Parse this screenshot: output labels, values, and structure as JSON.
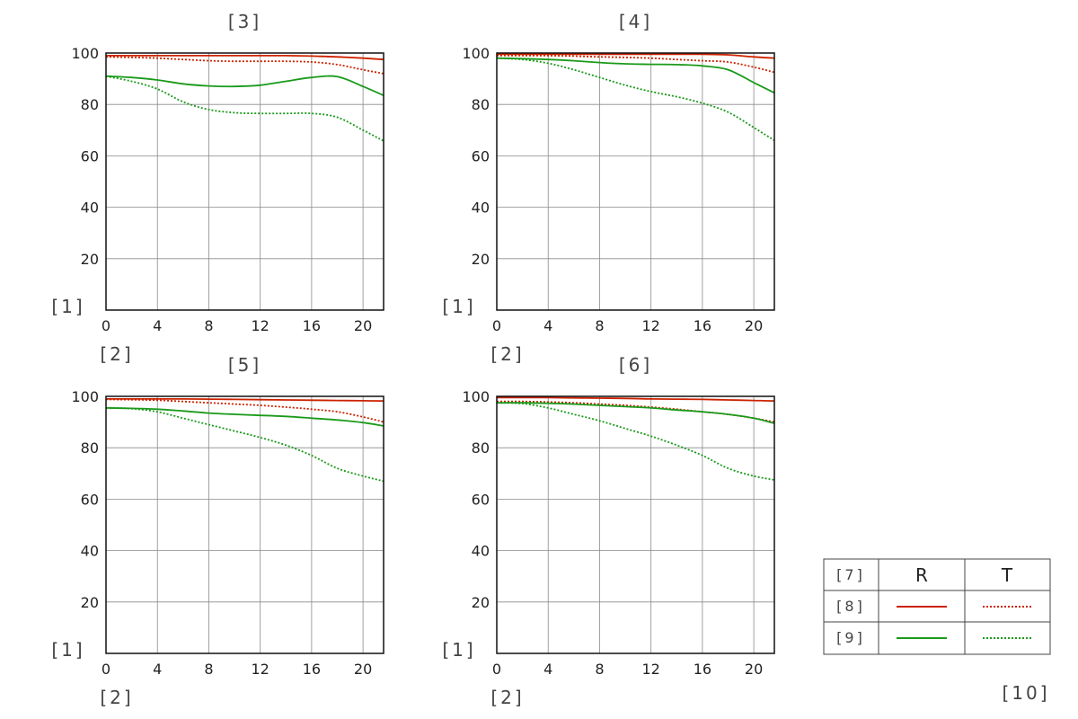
{
  "page": {
    "bottom_label": "[10]"
  },
  "legend": {
    "header_label": "[7]",
    "col_r": "R",
    "col_t": "T",
    "rows": [
      {
        "label": "[8]",
        "color": "#cc2200"
      },
      {
        "label": "[9]",
        "color": "#1a9a1a"
      }
    ]
  },
  "chart_data": [
    {
      "type": "line",
      "title": "[3]",
      "ylabel": "[1]",
      "xlabel": "[2]",
      "xlim": [
        0,
        21.6
      ],
      "ylim": [
        0,
        100
      ],
      "xticks": [
        0,
        4,
        8,
        12,
        16,
        20
      ],
      "yticks": [
        20,
        40,
        60,
        80,
        100
      ],
      "grid": true,
      "series": [
        {
          "color": "#cc2200",
          "style": "solid",
          "x": [
            0,
            2,
            4,
            6,
            8,
            10,
            12,
            14,
            16,
            18,
            20,
            21.6
          ],
          "y": [
            99,
            99,
            99,
            99,
            99,
            99,
            99,
            99,
            98.8,
            98.5,
            98,
            97.5
          ]
        },
        {
          "color": "#cc2200",
          "style": "dotted",
          "x": [
            0,
            2,
            4,
            6,
            8,
            10,
            12,
            14,
            16,
            18,
            20,
            21.6
          ],
          "y": [
            98.5,
            98.3,
            98,
            97.5,
            97,
            96.8,
            96.8,
            96.8,
            96.5,
            95.5,
            93.5,
            92
          ]
        },
        {
          "color": "#1a9a1a",
          "style": "solid",
          "x": [
            0,
            2,
            4,
            6,
            8,
            10,
            12,
            14,
            16,
            18,
            20,
            21.6
          ],
          "y": [
            91,
            90.5,
            89.5,
            88,
            87.2,
            87,
            87.5,
            89,
            90.5,
            90.8,
            87,
            83.5
          ]
        },
        {
          "color": "#1a9a1a",
          "style": "dotted",
          "x": [
            0,
            2,
            4,
            6,
            8,
            10,
            12,
            14,
            16,
            18,
            20,
            21.6
          ],
          "y": [
            91,
            89,
            86,
            81,
            78,
            76.8,
            76.5,
            76.5,
            76.5,
            75,
            70,
            65.8
          ]
        }
      ]
    },
    {
      "type": "line",
      "title": "[4]",
      "ylabel": "[1]",
      "xlabel": "[2]",
      "xlim": [
        0,
        21.6
      ],
      "ylim": [
        0,
        100
      ],
      "xticks": [
        0,
        4,
        8,
        12,
        16,
        20
      ],
      "yticks": [
        20,
        40,
        60,
        80,
        100
      ],
      "grid": true,
      "series": [
        {
          "color": "#cc2200",
          "style": "solid",
          "x": [
            0,
            2,
            4,
            6,
            8,
            10,
            12,
            14,
            16,
            18,
            20,
            21.6
          ],
          "y": [
            99.5,
            99.5,
            99.5,
            99.5,
            99.5,
            99.5,
            99.5,
            99.5,
            99.5,
            99.3,
            98.5,
            98
          ]
        },
        {
          "color": "#cc2200",
          "style": "dotted",
          "x": [
            0,
            2,
            4,
            6,
            8,
            10,
            12,
            14,
            16,
            18,
            20,
            21.6
          ],
          "y": [
            99,
            99,
            99,
            98.8,
            98.5,
            98.3,
            98,
            97.5,
            97,
            96.5,
            94.5,
            92.5
          ]
        },
        {
          "color": "#1a9a1a",
          "style": "solid",
          "x": [
            0,
            2,
            4,
            6,
            8,
            10,
            12,
            14,
            16,
            18,
            20,
            21.6
          ],
          "y": [
            98,
            97.8,
            97.5,
            97,
            96.3,
            95.8,
            95.6,
            95.5,
            95,
            93.5,
            88.5,
            84.5
          ]
        },
        {
          "color": "#1a9a1a",
          "style": "dotted",
          "x": [
            0,
            2,
            4,
            6,
            8,
            10,
            12,
            14,
            16,
            18,
            20,
            21.6
          ],
          "y": [
            98,
            97.5,
            96,
            93.5,
            90.5,
            87.5,
            85,
            83,
            80.5,
            77,
            71,
            66
          ]
        }
      ]
    },
    {
      "type": "line",
      "title": "[5]",
      "ylabel": "[1]",
      "xlabel": "[2]",
      "xlim": [
        0,
        21.6
      ],
      "ylim": [
        0,
        100
      ],
      "xticks": [
        0,
        4,
        8,
        12,
        16,
        20
      ],
      "yticks": [
        20,
        40,
        60,
        80,
        100
      ],
      "grid": true,
      "series": [
        {
          "color": "#cc2200",
          "style": "solid",
          "x": [
            0,
            2,
            4,
            6,
            8,
            10,
            12,
            14,
            16,
            18,
            20,
            21.6
          ],
          "y": [
            99,
            99,
            99,
            99,
            98.9,
            98.8,
            98.7,
            98.6,
            98.5,
            98.4,
            98.3,
            98.2
          ]
        },
        {
          "color": "#cc2200",
          "style": "dotted",
          "x": [
            0,
            2,
            4,
            6,
            8,
            10,
            12,
            14,
            16,
            18,
            20,
            21.6
          ],
          "y": [
            98.8,
            98.7,
            98.5,
            98,
            97.5,
            97,
            96.5,
            95.8,
            95,
            94,
            92,
            90
          ]
        },
        {
          "color": "#1a9a1a",
          "style": "solid",
          "x": [
            0,
            2,
            4,
            6,
            8,
            10,
            12,
            14,
            16,
            18,
            20,
            21.6
          ],
          "y": [
            95.5,
            95.3,
            95,
            94.3,
            93.5,
            93,
            92.6,
            92.2,
            91.5,
            90.8,
            89.8,
            88.5
          ]
        },
        {
          "color": "#1a9a1a",
          "style": "dotted",
          "x": [
            0,
            2,
            4,
            6,
            8,
            10,
            12,
            14,
            16,
            18,
            20,
            21.6
          ],
          "y": [
            95.5,
            95.2,
            94,
            91.5,
            89,
            86.5,
            84,
            81,
            77,
            72,
            69,
            67
          ]
        }
      ]
    },
    {
      "type": "line",
      "title": "[6]",
      "ylabel": "[1]",
      "xlabel": "[2]",
      "xlim": [
        0,
        21.6
      ],
      "ylim": [
        0,
        100
      ],
      "xticks": [
        0,
        4,
        8,
        12,
        16,
        20
      ],
      "yticks": [
        20,
        40,
        60,
        80,
        100
      ],
      "grid": true,
      "series": [
        {
          "color": "#cc2200",
          "style": "solid",
          "x": [
            0,
            2,
            4,
            6,
            8,
            10,
            12,
            14,
            16,
            18,
            20,
            21.6
          ],
          "y": [
            99.5,
            99.5,
            99.5,
            99.4,
            99.3,
            99.2,
            99,
            98.9,
            98.8,
            98.6,
            98.4,
            98.2
          ]
        },
        {
          "color": "#cc2200",
          "style": "dotted",
          "x": [
            0,
            2,
            4,
            6,
            8,
            10,
            12,
            14,
            16,
            18,
            20,
            21.6
          ],
          "y": [
            98,
            98,
            97.8,
            97.5,
            97,
            96.5,
            95.8,
            95,
            94,
            93,
            91.5,
            90
          ]
        },
        {
          "color": "#1a9a1a",
          "style": "solid",
          "x": [
            0,
            2,
            4,
            6,
            8,
            10,
            12,
            14,
            16,
            18,
            20,
            21.6
          ],
          "y": [
            97.5,
            97.5,
            97.3,
            97,
            96.5,
            96,
            95.5,
            94.7,
            94,
            93,
            91.5,
            89.5
          ]
        },
        {
          "color": "#1a9a1a",
          "style": "dotted",
          "x": [
            0,
            2,
            4,
            6,
            8,
            10,
            12,
            14,
            16,
            18,
            20,
            21.6
          ],
          "y": [
            97.5,
            97.2,
            95.5,
            93,
            90.5,
            87.5,
            84.5,
            81,
            77,
            72,
            69,
            67.5
          ]
        }
      ]
    }
  ]
}
